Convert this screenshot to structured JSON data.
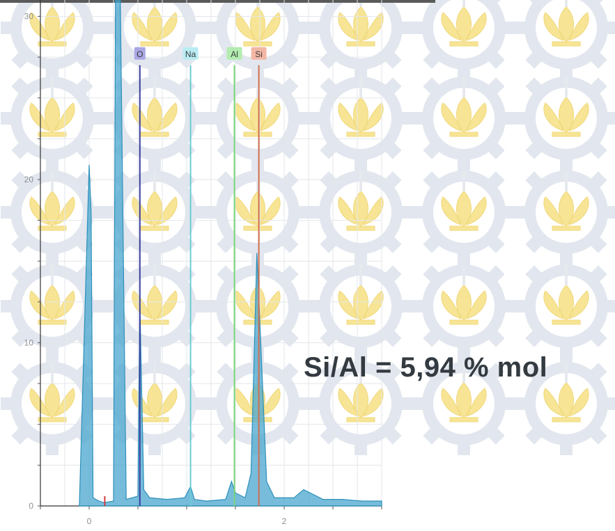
{
  "watermark": {
    "description_name": "its-emblem-watermark",
    "emblem_color": "#f7e28a",
    "gear_color": "#dfe4ec"
  },
  "chart_data": {
    "type": "line",
    "title": "",
    "xlabel": "",
    "ylabel": "",
    "xlim": [
      -0.5,
      3.0
    ],
    "ylim": [
      0,
      31
    ],
    "x_ticks": [
      0,
      2
    ],
    "y_ticks": [
      0,
      10,
      20,
      30
    ],
    "grid": true,
    "legend": "none",
    "series": [
      {
        "x": [
          -0.1,
          0.0,
          0.02,
          0.04,
          0.1,
          0.15,
          0.25,
          0.27,
          0.32,
          0.38,
          0.5,
          0.52,
          0.56,
          0.62,
          0.8,
          0.98,
          1.04,
          1.08,
          1.2,
          1.4,
          1.46,
          1.5,
          1.6,
          1.66,
          1.72,
          1.76,
          1.82,
          1.9,
          2.1,
          2.2,
          2.4,
          2.6,
          2.8,
          3.0
        ],
        "y": [
          0.1,
          20.9,
          18.0,
          0.5,
          0.3,
          0.2,
          0.3,
          31.0,
          31.0,
          0.4,
          0.6,
          12.5,
          1.0,
          0.5,
          0.4,
          0.5,
          1.2,
          0.4,
          0.3,
          0.4,
          1.5,
          0.8,
          0.5,
          2.0,
          15.5,
          10.0,
          1.5,
          0.5,
          0.5,
          1.0,
          0.4,
          0.4,
          0.3,
          0.3
        ]
      }
    ],
    "element_markers": [
      {
        "label": "O",
        "x": 0.52,
        "height": 27,
        "color": "#3b3f9e",
        "tag_color": "#a9a7e4"
      },
      {
        "label": "Na",
        "x": 1.04,
        "height": 27,
        "color": "#6ccbd6",
        "tag_color": "#b9ecf3"
      },
      {
        "label": "Al",
        "x": 1.49,
        "height": 27,
        "color": "#79d679",
        "tag_color": "#b3ecb0"
      },
      {
        "label": "Si",
        "x": 1.74,
        "height": 27,
        "color": "#cf6f4f",
        "tag_color": "#f3b7a6"
      }
    ],
    "small_peak": {
      "x": 0.16,
      "y": 0.6,
      "color": "#d23a3a"
    },
    "annotation": "Si/Al = 5,94 % mol",
    "fill_color": "#4aa7cf",
    "line_color": "#2c8fb9"
  }
}
